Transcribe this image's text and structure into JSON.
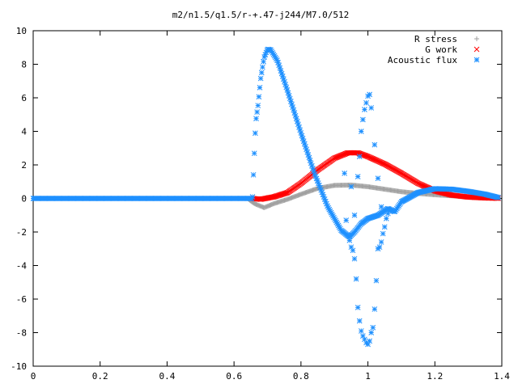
{
  "chart_data": {
    "type": "scatter",
    "title": "m2/n1.5/q1.5/r-+.47-j244/M7.0/512",
    "xlabel": "",
    "ylabel": "",
    "xlim": [
      0,
      1.4
    ],
    "ylim": [
      -10,
      10
    ],
    "x_ticks": [
      "0",
      "0.2",
      "0.4",
      "0.6",
      "0.8",
      "1",
      "1.2",
      "1.4"
    ],
    "y_ticks": [
      "10",
      "8",
      "6",
      "4",
      "2",
      "0",
      "-2",
      "-4",
      "-6",
      "-8",
      "-10"
    ],
    "legend_position": "top-right",
    "series": [
      {
        "name": "R stress",
        "marker": "plus",
        "color": "#a0a0a0",
        "curve": [
          [
            0,
            0
          ],
          [
            0.64,
            0
          ],
          [
            0.66,
            -0.3
          ],
          [
            0.69,
            -0.55
          ],
          [
            0.72,
            -0.3
          ],
          [
            0.76,
            -0.05
          ],
          [
            0.8,
            0.25
          ],
          [
            0.85,
            0.6
          ],
          [
            0.9,
            0.78
          ],
          [
            0.95,
            0.8
          ],
          [
            1.0,
            0.7
          ],
          [
            1.05,
            0.55
          ],
          [
            1.1,
            0.4
          ],
          [
            1.15,
            0.3
          ],
          [
            1.2,
            0.22
          ],
          [
            1.25,
            0.16
          ],
          [
            1.3,
            0.1
          ],
          [
            1.35,
            0.05
          ],
          [
            1.39,
            0.02
          ]
        ]
      },
      {
        "name": "G work",
        "marker": "cross",
        "color": "#ff0000",
        "curve": [
          [
            0.655,
            0
          ],
          [
            0.68,
            -0.05
          ],
          [
            0.72,
            0.1
          ],
          [
            0.76,
            0.35
          ],
          [
            0.8,
            0.9
          ],
          [
            0.85,
            1.7
          ],
          [
            0.9,
            2.4
          ],
          [
            0.94,
            2.72
          ],
          [
            0.97,
            2.72
          ],
          [
            1.0,
            2.5
          ],
          [
            1.05,
            2.05
          ],
          [
            1.1,
            1.5
          ],
          [
            1.15,
            0.9
          ],
          [
            1.2,
            0.45
          ],
          [
            1.25,
            0.2
          ],
          [
            1.3,
            0.08
          ],
          [
            1.35,
            0.03
          ],
          [
            1.39,
            0.01
          ]
        ]
      },
      {
        "name": "Acoustic flux",
        "marker": "star",
        "color": "#1e90ff",
        "curve": [
          [
            0,
            0
          ],
          [
            0.655,
            0
          ],
          [
            0.66,
            2.4
          ],
          [
            0.665,
            4.6
          ],
          [
            0.672,
            5.6
          ],
          [
            0.68,
            7.2
          ],
          [
            0.69,
            8.4
          ],
          [
            0.7,
            8.9
          ],
          [
            0.71,
            8.85
          ],
          [
            0.73,
            8.2
          ],
          [
            0.76,
            6.4
          ],
          [
            0.8,
            3.9
          ],
          [
            0.84,
            1.5
          ],
          [
            0.88,
            -0.5
          ],
          [
            0.92,
            -1.9
          ],
          [
            0.945,
            -2.3
          ],
          [
            0.96,
            -2.0
          ],
          [
            0.98,
            -1.5
          ],
          [
            1.0,
            -1.2
          ],
          [
            1.03,
            -1.0
          ],
          [
            1.06,
            -0.6
          ],
          [
            1.08,
            -0.8
          ],
          [
            1.1,
            -0.2
          ],
          [
            1.15,
            0.35
          ],
          [
            1.2,
            0.58
          ],
          [
            1.25,
            0.55
          ],
          [
            1.3,
            0.42
          ],
          [
            1.35,
            0.25
          ],
          [
            1.39,
            0.05
          ]
        ],
        "scattered": [
          [
            0.94,
            -2.2
          ],
          [
            0.945,
            -2.5
          ],
          [
            0.95,
            -2.9
          ],
          [
            0.955,
            -3.1
          ],
          [
            0.96,
            -3.6
          ],
          [
            0.965,
            -4.8
          ],
          [
            0.97,
            -6.5
          ],
          [
            0.975,
            -7.3
          ],
          [
            0.98,
            -7.9
          ],
          [
            0.985,
            -8.2
          ],
          [
            0.99,
            -8.4
          ],
          [
            0.995,
            -8.6
          ],
          [
            1.0,
            -8.7
          ],
          [
            1.005,
            -8.5
          ],
          [
            1.01,
            -8.0
          ],
          [
            1.015,
            -7.7
          ],
          [
            1.02,
            -6.6
          ],
          [
            1.025,
            -4.9
          ],
          [
            1.03,
            -3.0
          ],
          [
            1.035,
            -2.9
          ],
          [
            1.04,
            -2.6
          ],
          [
            1.045,
            -2.1
          ],
          [
            1.05,
            -1.7
          ],
          [
            1.055,
            -1.2
          ],
          [
            1.06,
            -0.9
          ],
          [
            0.97,
            1.3
          ],
          [
            0.975,
            2.5
          ],
          [
            0.98,
            4.0
          ],
          [
            0.985,
            4.7
          ],
          [
            0.99,
            5.3
          ],
          [
            0.995,
            5.7
          ],
          [
            1.0,
            6.1
          ],
          [
            1.005,
            6.2
          ],
          [
            1.01,
            5.4
          ],
          [
            1.02,
            3.2
          ],
          [
            1.03,
            1.2
          ],
          [
            1.04,
            -0.5
          ],
          [
            0.93,
            1.5
          ],
          [
            0.95,
            0.7
          ],
          [
            0.96,
            -1.0
          ],
          [
            0.935,
            -1.3
          ]
        ]
      }
    ]
  }
}
